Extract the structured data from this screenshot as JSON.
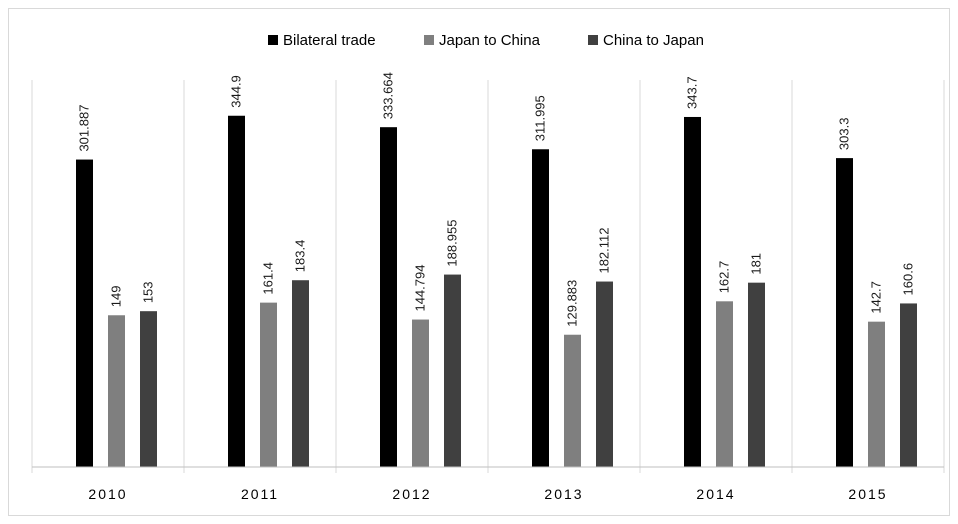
{
  "chart_data": {
    "type": "bar",
    "title": "",
    "xlabel": "",
    "ylabel": "",
    "ylim": [
      0,
      380
    ],
    "grid": false,
    "legend_position": "top",
    "categories": [
      "2010",
      "2011",
      "2012",
      "2013",
      "2014",
      "2015"
    ],
    "series": [
      {
        "name": "Bilateral trade",
        "color": "#000000",
        "values": [
          301.887,
          344.9,
          333.664,
          311.995,
          343.7,
          303.3
        ],
        "labels": [
          "301.887",
          "344.9",
          "333.664",
          "311.995",
          "343.7",
          "303.3"
        ]
      },
      {
        "name": "Japan to China",
        "color": "#7f7f7f",
        "values": [
          149,
          161.4,
          144.794,
          129.883,
          162.7,
          142.7
        ],
        "labels": [
          "149",
          "161.4",
          "144.794",
          "129.883",
          "162.7",
          "142.7"
        ]
      },
      {
        "name": "China to Japan",
        "color": "#404040",
        "values": [
          153,
          183.4,
          188.955,
          182.112,
          181,
          160.6
        ],
        "labels": [
          "153",
          "183.4",
          "188.955",
          "182.112",
          "181",
          "160.6"
        ]
      }
    ]
  }
}
